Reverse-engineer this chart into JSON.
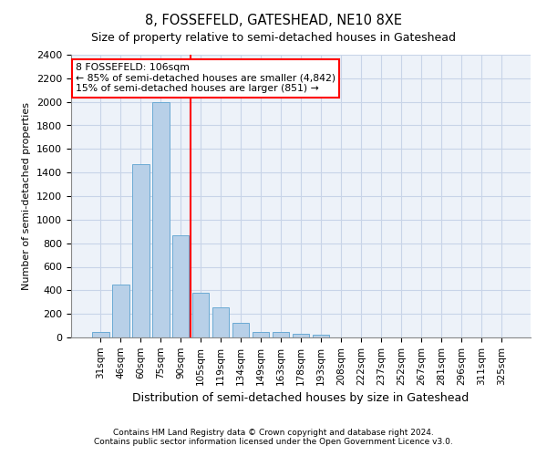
{
  "title": "8, FOSSEFELD, GATESHEAD, NE10 8XE",
  "subtitle": "Size of property relative to semi-detached houses in Gateshead",
  "xlabel": "Distribution of semi-detached houses by size in Gateshead",
  "ylabel": "Number of semi-detached properties",
  "categories": [
    "31sqm",
    "46sqm",
    "60sqm",
    "75sqm",
    "90sqm",
    "105sqm",
    "119sqm",
    "134sqm",
    "149sqm",
    "163sqm",
    "178sqm",
    "193sqm",
    "208sqm",
    "222sqm",
    "237sqm",
    "252sqm",
    "267sqm",
    "281sqm",
    "296sqm",
    "311sqm",
    "325sqm"
  ],
  "values": [
    50,
    450,
    1470,
    2000,
    870,
    380,
    255,
    125,
    50,
    50,
    30,
    20,
    0,
    0,
    0,
    0,
    0,
    0,
    0,
    0,
    0
  ],
  "bar_color": "#b8d0e8",
  "bar_edge_color": "#6aaad4",
  "red_line_x": 4.5,
  "ylim": [
    0,
    2400
  ],
  "yticks": [
    0,
    200,
    400,
    600,
    800,
    1000,
    1200,
    1400,
    1600,
    1800,
    2000,
    2200,
    2400
  ],
  "annotation_title": "8 FOSSEFELD: 106sqm",
  "annotation_line1": "← 85% of semi-detached houses are smaller (4,842)",
  "annotation_line2": "15% of semi-detached houses are larger (851) →",
  "footer1": "Contains HM Land Registry data © Crown copyright and database right 2024.",
  "footer2": "Contains public sector information licensed under the Open Government Licence v3.0.",
  "grid_color": "#c8d4e8",
  "bg_color": "#edf2f9"
}
